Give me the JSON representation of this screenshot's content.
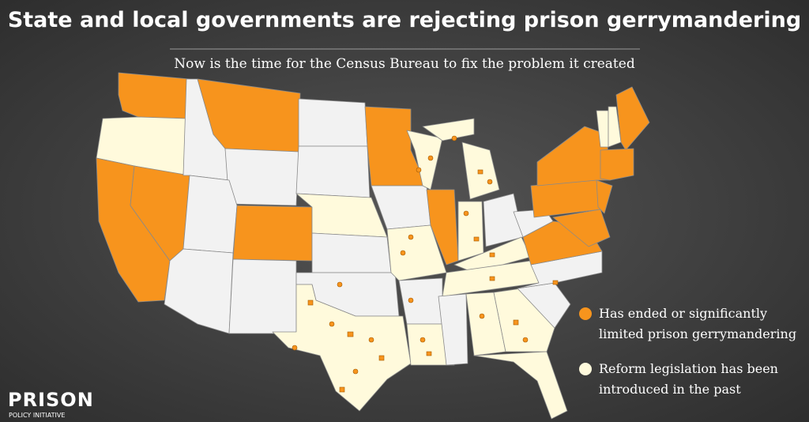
{
  "header": {
    "title": "State and local governments are rejecting prison gerrymandering",
    "subtitle": "Now is the time for the Census Bureau to fix the problem it created"
  },
  "legend": [
    {
      "lines": [
        "Has ended or significantly",
        "limited prison gerrymandering"
      ]
    },
    {
      "lines": [
        "Reform legislation has been",
        "introduced in the past"
      ]
    }
  ],
  "logo": {
    "name": "PRISON",
    "tagline": "POLICY INITIATIVE"
  }
}
